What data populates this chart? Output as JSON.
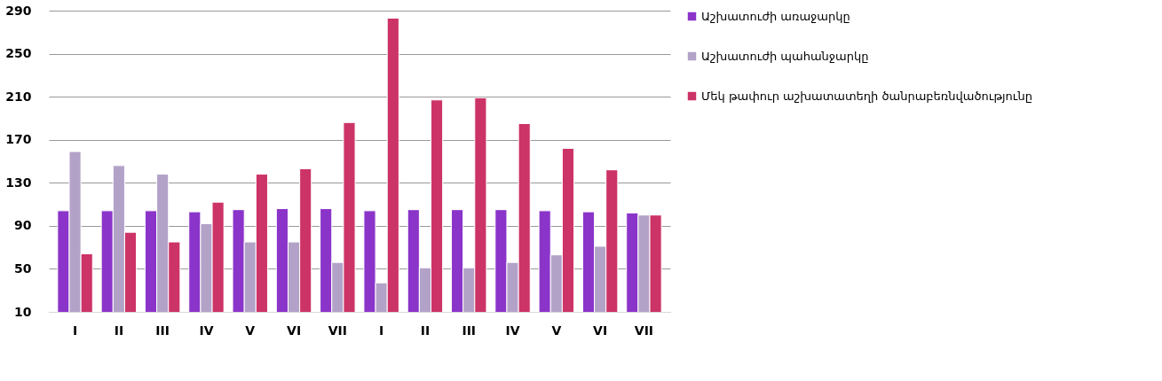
{
  "chart_data": {
    "type": "bar",
    "categories": [
      "I",
      "II",
      "III",
      "IV",
      "V",
      "VI",
      "VII",
      "I",
      "II",
      "III",
      "IV",
      "V",
      "VI",
      "VII"
    ],
    "series": [
      {
        "name": "Աշխատուժի առաջարկը",
        "color": "#8b34c9",
        "values": [
          104,
          104,
          104,
          103,
          105,
          106,
          106,
          104,
          105,
          105,
          105,
          104,
          103,
          102
        ]
      },
      {
        "name": "Աշխատուժի պահանջարկը",
        "color": "#b3a2c8",
        "values": [
          159,
          146,
          138,
          92,
          75,
          75,
          56,
          37,
          51,
          51,
          56,
          63,
          71,
          100
        ]
      },
      {
        "name": "Մեկ թափուր աշխատատեղի ծանրաբեռնվածությունը",
        "color": "#cc3366",
        "values": [
          64,
          84,
          75,
          112,
          138,
          143,
          186,
          283,
          207,
          209,
          185,
          162,
          142,
          100
        ]
      }
    ],
    "ylim": [
      10,
      290
    ],
    "yticks": [
      10,
      50,
      90,
      130,
      170,
      210,
      250,
      290
    ],
    "grid": "y",
    "legend": "right"
  }
}
